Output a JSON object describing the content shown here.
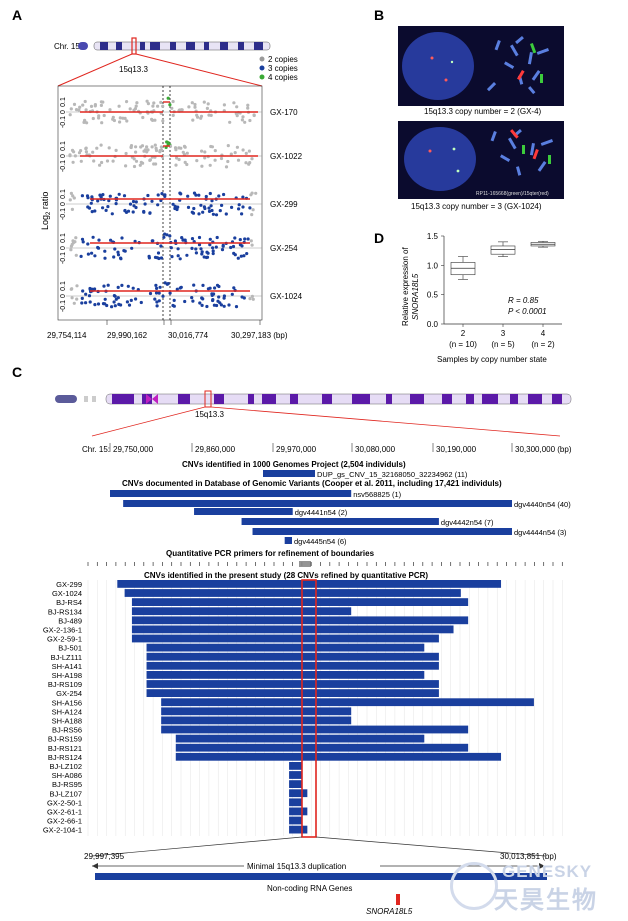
{
  "panels": {
    "a": "A",
    "b": "B",
    "c": "C",
    "d": "D"
  },
  "panel_a": {
    "chrom": "Chr. 15",
    "band": "15q13.3",
    "legend": [
      "2 copies",
      "3 copies",
      "4 copies"
    ],
    "ylabel_pre": "Log",
    "ylabel_sub": "2",
    "ylabel_post": " ratio",
    "samples": [
      "GX-170",
      "GX-1022",
      "GX-299",
      "GX-254",
      "GX-1024"
    ],
    "ticks": [
      "0.1",
      "0",
      "-0.1"
    ],
    "x_ticks": [
      "29,754,114",
      "29,990,162",
      "30,016,774",
      "30,297,183 (bp)"
    ]
  },
  "panel_b": {
    "caption1": "15q13.3 copy number = 2 (GX-4)",
    "caption2": "15q13.3 copy number = 3 (GX-1024)",
    "probe": "RP11-165668(green)/15qter(red)"
  },
  "panel_d": {
    "ylabel1": "Relative expression of",
    "ylabel2": "SNORA18L5",
    "xlabel": "Samples by copy number state",
    "yticks": [
      "0.0",
      "0.5",
      "1.0",
      "1.5"
    ],
    "stat_r": "R = 0.85",
    "stat_p": "P < 0.0001",
    "chart_data": {
      "type": "box",
      "categories": [
        "2",
        "3",
        "4"
      ],
      "n_labels": [
        "(n = 10)",
        "(n = 5)",
        "(n = 2)"
      ],
      "ylim": [
        0,
        1.5
      ],
      "boxes": [
        {
          "min": 0.76,
          "q1": 0.84,
          "median": 0.95,
          "q3": 1.05,
          "max": 1.15
        },
        {
          "min": 1.15,
          "q1": 1.19,
          "median": 1.27,
          "q3": 1.33,
          "max": 1.4
        },
        {
          "min": 1.31,
          "q1": 1.33,
          "median": 1.36,
          "q3": 1.39,
          "max": 1.41
        }
      ]
    }
  },
  "panel_c": {
    "band": "15q13.3",
    "chr_label": "Chr. 15:",
    "coords": [
      "29,750,000",
      "29,860,000",
      "29,970,000",
      "30,080,000",
      "30,190,000",
      "30,300,000 (bp)"
    ],
    "title_1000g": "CNVs identified in 1000 Genomes Project (2,504 individuls)",
    "dup_label": "DUP_gs_CNV_15_32168050_32234962 (11)",
    "title_dgv": "CNVs documented in Database of Genomic Variants (Cooper et al. 2011, including 17,421 individuls)",
    "dgv": [
      {
        "label": "nsv568825 (1)",
        "start": 29750000,
        "end": 30080000
      },
      {
        "label": "dgv4440n54 (40)",
        "start": 29768000,
        "end": 30300000
      },
      {
        "label": "dgv4441n54 (2)",
        "start": 29865000,
        "end": 30000000
      },
      {
        "label": "dgv4442n54 (7)",
        "start": 29930000,
        "end": 30200000
      },
      {
        "label": "dgv4444n54 (3)",
        "start": 29945000,
        "end": 30300000
      },
      {
        "label": "dgv4445n54 (6)",
        "start": 29989000,
        "end": 29999000
      }
    ],
    "title_qpcr": "Quantitative PCR primers for refinement of boundaries",
    "title_present": "CNVs identified in the present study (28 CNVs refined by quantitative PCR)",
    "present": [
      {
        "label": "GX-299",
        "start": 29760000,
        "end": 30285000
      },
      {
        "label": "GX-1024",
        "start": 29770000,
        "end": 30230000
      },
      {
        "label": "BJ-RS4",
        "start": 29780000,
        "end": 30240000
      },
      {
        "label": "BJ-RS134",
        "start": 29780000,
        "end": 30080000
      },
      {
        "label": "BJ-489",
        "start": 29780000,
        "end": 30240000
      },
      {
        "label": "GX-2-136-1",
        "start": 29780000,
        "end": 30220000
      },
      {
        "label": "GX-2-59-1",
        "start": 29780000,
        "end": 30200000
      },
      {
        "label": "BJ-501",
        "start": 29800000,
        "end": 30180000
      },
      {
        "label": "BJ-LZ111",
        "start": 29800000,
        "end": 30200000
      },
      {
        "label": "SH-A141",
        "start": 29800000,
        "end": 30200000
      },
      {
        "label": "SH-A198",
        "start": 29800000,
        "end": 30180000
      },
      {
        "label": "BJ-RS109",
        "start": 29800000,
        "end": 30200000
      },
      {
        "label": "GX-254",
        "start": 29800000,
        "end": 30200000
      },
      {
        "label": "SH-A156",
        "start": 29820000,
        "end": 30330000
      },
      {
        "label": "SH-A124",
        "start": 29820000,
        "end": 30080000
      },
      {
        "label": "SH-A188",
        "start": 29820000,
        "end": 30080000
      },
      {
        "label": "BJ-RS56",
        "start": 29820000,
        "end": 30240000
      },
      {
        "label": "BJ-RS159",
        "start": 29840000,
        "end": 30180000
      },
      {
        "label": "BJ-RS121",
        "start": 29840000,
        "end": 30240000
      },
      {
        "label": "BJ-RS124",
        "start": 29840000,
        "end": 30285000
      },
      {
        "label": "BJ-LZ102",
        "start": 29995000,
        "end": 30013000
      },
      {
        "label": "SH-A086",
        "start": 29995000,
        "end": 30013000
      },
      {
        "label": "BJ-RS95",
        "start": 29995000,
        "end": 30013000
      },
      {
        "label": "BJ-LZ107",
        "start": 29995000,
        "end": 30020000
      },
      {
        "label": "GX-2-50-1",
        "start": 29995000,
        "end": 30013000
      },
      {
        "label": "GX-2-61-1",
        "start": 29995000,
        "end": 30020000
      },
      {
        "label": "GX-2-66-1",
        "start": 29995000,
        "end": 30013000
      },
      {
        "label": "GX-2-104-1",
        "start": 29995000,
        "end": 30020000
      }
    ],
    "min_left": "29,997,395",
    "min_right": "30,013,851 (bp)",
    "min_label": "Minimal 15q13.3 duplication",
    "ncrna_label": "Non-coding RNA Genes",
    "gene_label": "SNORA18L5"
  },
  "watermark": {
    "en": "GENESKY",
    "cn": "天昊生物"
  },
  "colors": {
    "blue": "#1a3f9e",
    "red": "#e0261f",
    "grey": "#b8b8b8",
    "green": "#3aa935",
    "chrom": "#5b1aa8"
  }
}
